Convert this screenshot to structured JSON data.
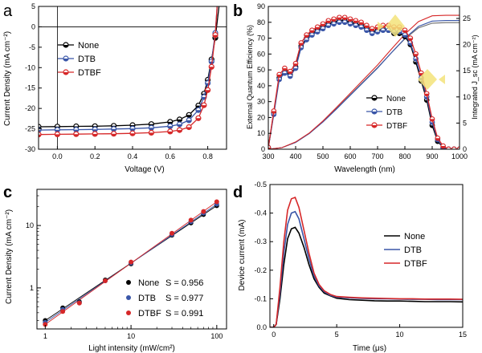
{
  "panels": [
    {
      "letter": "a",
      "chart_data": {
        "type": "line",
        "xlabel": "Voltage (V)",
        "ylabel": "Current Density (mA cm⁻²)",
        "xlim": [
          -0.1,
          0.9
        ],
        "ylim": [
          -30,
          5
        ],
        "xticks": [
          0.0,
          0.2,
          0.4,
          0.6,
          0.8
        ],
        "xtick_labels": [
          "0.0",
          "0.2",
          "0.4",
          "0.6",
          "0.8"
        ],
        "yticks": [
          5,
          0,
          -5,
          -10,
          -15,
          -20,
          -25,
          -30
        ],
        "ytick_labels": [
          "5",
          "0",
          "-5",
          "-10",
          "-15",
          "-20",
          "-25",
          "-30"
        ],
        "legend_position": "upper-left",
        "series": [
          {
            "name": "None",
            "color": "#000000",
            "x": [
              -0.1,
              0.0,
              0.1,
              0.2,
              0.3,
              0.4,
              0.5,
              0.6,
              0.65,
              0.7,
              0.75,
              0.78,
              0.8,
              0.82,
              0.84,
              0.86
            ],
            "y": [
              -24.5,
              -24.45,
              -24.4,
              -24.35,
              -24.25,
              -24.1,
              -23.85,
              -23.3,
              -22.7,
              -21.6,
              -19.3,
              -16.4,
              -13.0,
              -8.0,
              -2.7,
              5.0
            ]
          },
          {
            "name": "DTB",
            "color": "#3a56a8",
            "x": [
              -0.1,
              0.0,
              0.1,
              0.2,
              0.3,
              0.4,
              0.5,
              0.6,
              0.65,
              0.7,
              0.75,
              0.78,
              0.8,
              0.82,
              0.84,
              0.85
            ],
            "y": [
              -25.3,
              -25.25,
              -25.2,
              -25.15,
              -25.05,
              -24.95,
              -24.75,
              -24.35,
              -23.9,
              -22.9,
              -20.4,
              -17.2,
              -13.8,
              -8.5,
              -1.5,
              5.0
            ]
          },
          {
            "name": "DTBF",
            "color": "#d62728",
            "x": [
              -0.1,
              0.0,
              0.1,
              0.2,
              0.3,
              0.4,
              0.5,
              0.6,
              0.65,
              0.7,
              0.75,
              0.78,
              0.8,
              0.82,
              0.84,
              0.85
            ],
            "y": [
              -26.4,
              -26.35,
              -26.3,
              -26.25,
              -26.2,
              -26.1,
              -25.95,
              -25.65,
              -25.3,
              -24.6,
              -22.4,
              -19.2,
              -15.5,
              -9.8,
              -2.0,
              5.0
            ]
          }
        ]
      }
    },
    {
      "letter": "b",
      "chart_data": {
        "type": "line",
        "xlabel": "Wavelength (nm)",
        "ylabel": "External Quantum Efficiency (%)",
        "y2label": "Integrated J_sc (mA cm⁻²)",
        "xlim": [
          300,
          1000
        ],
        "ylim": [
          0,
          90
        ],
        "y2lim": [
          0,
          27.3
        ],
        "xticks": [
          300,
          400,
          500,
          600,
          700,
          800,
          900,
          1000
        ],
        "xtick_labels": [
          "300",
          "400",
          "500",
          "600",
          "700",
          "800",
          "900",
          "1000"
        ],
        "yticks": [
          0,
          10,
          20,
          30,
          40,
          50,
          60,
          70,
          80,
          90
        ],
        "ytick_labels": [
          "0",
          "10",
          "20",
          "30",
          "40",
          "50",
          "60",
          "70",
          "80",
          "90"
        ],
        "y2ticks": [
          0,
          5,
          10,
          15,
          20,
          25
        ],
        "y2tick_labels": [
          "0",
          "5",
          "10",
          "15",
          "20",
          "25"
        ],
        "legend_position": "lower-right",
        "series": [
          {
            "name": "None",
            "color": "#000000",
            "x": [
              300,
              320,
              340,
              360,
              380,
              400,
              420,
              440,
              460,
              480,
              500,
              520,
              540,
              560,
              580,
              600,
              620,
              640,
              660,
              680,
              700,
              720,
              740,
              760,
              780,
              800,
              820,
              840,
              860,
              880,
              900,
              920,
              940,
              960,
              980,
              1000
            ],
            "y": [
              1,
              23,
              45,
              49,
              47,
              52,
              65,
              70,
              73,
              75,
              77,
              79,
              80,
              81,
              81,
              80,
              79,
              78,
              76,
              74,
              75,
              76,
              75,
              73,
              73,
              71,
              66,
              55,
              43,
              31,
              15,
              5,
              1,
              0,
              0,
              0
            ]
          },
          {
            "name": "DTB",
            "color": "#3a56a8",
            "x": [
              300,
              320,
              340,
              360,
              380,
              400,
              420,
              440,
              460,
              480,
              500,
              520,
              540,
              560,
              580,
              600,
              620,
              640,
              660,
              680,
              700,
              720,
              740,
              760,
              780,
              800,
              820,
              840,
              860,
              880,
              900,
              920,
              940,
              960,
              980,
              1000
            ],
            "y": [
              1,
              22,
              44,
              48,
              46,
              51,
              64,
              69,
              72,
              74,
              76,
              78,
              79,
              80,
              80,
              79,
              78,
              77,
              75,
              73,
              74,
              75,
              75,
              74,
              74,
              72,
              67,
              57,
              45,
              33,
              17,
              6,
              1,
              0,
              0,
              0
            ]
          },
          {
            "name": "DTBF",
            "color": "#d62728",
            "x": [
              300,
              320,
              340,
              360,
              380,
              400,
              420,
              440,
              460,
              480,
              500,
              520,
              540,
              560,
              580,
              600,
              620,
              640,
              660,
              680,
              700,
              720,
              740,
              760,
              780,
              800,
              820,
              840,
              860,
              880,
              900,
              920,
              940,
              960,
              980,
              1000
            ],
            "y": [
              1,
              24,
              47,
              51,
              49,
              54,
              67,
              72,
              75,
              77,
              79,
              81,
              82,
              83,
              83,
              82,
              81,
              80,
              78,
              76,
              77,
              78,
              78,
              77,
              77,
              75,
              70,
              60,
              48,
              35,
              19,
              7,
              2,
              0,
              0,
              0
            ]
          }
        ],
        "integrated_series": [
          {
            "name": "None",
            "color": "#6a6a6a",
            "x": [
              300,
              350,
              400,
              450,
              500,
              550,
              600,
              650,
              700,
              750,
              800,
              850,
              900,
              950,
              1000
            ],
            "y": [
              0,
              0.3,
              1.3,
              3.0,
              5.3,
              7.8,
              10.4,
              13.0,
              15.6,
              18.4,
              21.1,
              23.2,
              24.1,
              24.2,
              24.2
            ]
          },
          {
            "name": "DTB",
            "color": "#3a56a8",
            "x": [
              300,
              350,
              400,
              450,
              500,
              550,
              600,
              650,
              700,
              750,
              800,
              850,
              900,
              950,
              1000
            ],
            "y": [
              0,
              0.3,
              1.3,
              3.0,
              5.2,
              7.7,
              10.3,
              12.9,
              15.5,
              18.4,
              21.2,
              23.5,
              24.5,
              24.6,
              24.6
            ]
          },
          {
            "name": "DTBF",
            "color": "#d62728",
            "x": [
              300,
              350,
              400,
              450,
              500,
              550,
              600,
              650,
              700,
              750,
              800,
              850,
              900,
              950,
              1000
            ],
            "y": [
              0,
              0.3,
              1.4,
              3.1,
              5.4,
              8.0,
              10.7,
              13.4,
              16.1,
              19.1,
              22.0,
              24.4,
              25.5,
              25.6,
              25.6
            ]
          }
        ]
      }
    },
    {
      "letter": "c",
      "chart_data": {
        "type": "scatter",
        "xlabel": "Light intensity (mW/cm²)",
        "ylabel": "Current Density (mA cm⁻²)",
        "xscale": "log",
        "yscale": "log",
        "xlim": [
          0.8,
          130
        ],
        "ylim": [
          0.22,
          38
        ],
        "xticks": [
          1,
          10,
          100
        ],
        "xtick_labels": [
          "1",
          "10",
          "100"
        ],
        "yticks": [
          1,
          10
        ],
        "ytick_labels": [
          "1",
          "10"
        ],
        "legend_position": "lower-right",
        "series": [
          {
            "name": "None",
            "slope_label": "S = 0.956",
            "color": "#000000",
            "x": [
              1,
              1.6,
              2.5,
              5,
              10,
              30,
              50,
              70,
              100
            ],
            "y": [
              0.3,
              0.48,
              0.6,
              1.34,
              2.43,
              7.0,
              11.0,
              15.0,
              20.8
            ]
          },
          {
            "name": "DTB",
            "slope_label": "S = 0.977",
            "color": "#3a56a8",
            "x": [
              1,
              1.6,
              2.5,
              5,
              10,
              30,
              50,
              70,
              100
            ],
            "y": [
              0.28,
              0.45,
              0.58,
              1.3,
              2.5,
              7.2,
              11.5,
              15.8,
              22.0
            ]
          },
          {
            "name": "DTBF",
            "slope_label": "S = 0.991",
            "color": "#d62728",
            "x": [
              1,
              1.6,
              2.5,
              5,
              10,
              30,
              50,
              70,
              100
            ],
            "y": [
              0.26,
              0.42,
              0.57,
              1.3,
              2.6,
              7.5,
              12.2,
              16.8,
              24.0
            ]
          }
        ]
      }
    },
    {
      "letter": "d",
      "chart_data": {
        "type": "line",
        "xlabel": "Time (μs)",
        "ylabel": "Device current (mA)",
        "xlim": [
          -0.3,
          15
        ],
        "ylim": [
          0,
          -0.5
        ],
        "xticks": [
          0,
          5,
          10,
          15
        ],
        "xtick_labels": [
          "0",
          "5",
          "10",
          "15"
        ],
        "yticks": [
          0,
          -0.1,
          -0.2,
          -0.3,
          -0.4,
          -0.5
        ],
        "ytick_labels": [
          "0.0",
          "-0.1",
          "-0.2",
          "-0.3",
          "-0.4",
          "-0.5"
        ],
        "legend_position": "upper-right",
        "series": [
          {
            "name": "None",
            "color": "#000000",
            "x": [
              -0.3,
              0,
              0.2,
              0.5,
              0.8,
              1.1,
              1.4,
              1.7,
              2.0,
              2.4,
              2.8,
              3.2,
              3.6,
              4.0,
              4.5,
              5,
              6,
              7,
              8,
              9,
              10,
              11,
              12,
              13,
              14,
              15
            ],
            "y": [
              0,
              0,
              -0.01,
              -0.1,
              -0.22,
              -0.31,
              -0.345,
              -0.35,
              -0.33,
              -0.28,
              -0.22,
              -0.17,
              -0.14,
              -0.12,
              -0.11,
              -0.102,
              -0.097,
              -0.095,
              -0.093,
              -0.092,
              -0.092,
              -0.091,
              -0.09,
              -0.09,
              -0.09,
              -0.089
            ]
          },
          {
            "name": "DTB",
            "color": "#3a56a8",
            "x": [
              -0.3,
              0,
              0.2,
              0.5,
              0.8,
              1.1,
              1.4,
              1.7,
              2.0,
              2.4,
              2.8,
              3.2,
              3.6,
              4.0,
              4.5,
              5,
              6,
              7,
              8,
              9,
              10,
              11,
              12,
              13,
              14,
              15
            ],
            "y": [
              0,
              0,
              -0.01,
              -0.12,
              -0.26,
              -0.36,
              -0.4,
              -0.405,
              -0.38,
              -0.31,
              -0.24,
              -0.18,
              -0.145,
              -0.125,
              -0.112,
              -0.106,
              -0.103,
              -0.101,
              -0.1,
              -0.1,
              -0.099,
              -0.098,
              -0.098,
              -0.097,
              -0.097,
              -0.097
            ]
          },
          {
            "name": "DTBF",
            "color": "#d62728",
            "x": [
              -0.3,
              0,
              0.2,
              0.5,
              0.8,
              1.1,
              1.4,
              1.7,
              2.0,
              2.4,
              2.8,
              3.2,
              3.6,
              4.0,
              4.5,
              5,
              6,
              7,
              8,
              9,
              10,
              11,
              12,
              13,
              14,
              15
            ],
            "y": [
              0,
              0,
              -0.01,
              -0.14,
              -0.3,
              -0.41,
              -0.45,
              -0.455,
              -0.42,
              -0.34,
              -0.26,
              -0.19,
              -0.15,
              -0.128,
              -0.115,
              -0.108,
              -0.105,
              -0.103,
              -0.102,
              -0.101,
              -0.1,
              -0.1,
              -0.099,
              -0.099,
              -0.099,
              -0.098
            ]
          }
        ]
      }
    }
  ]
}
